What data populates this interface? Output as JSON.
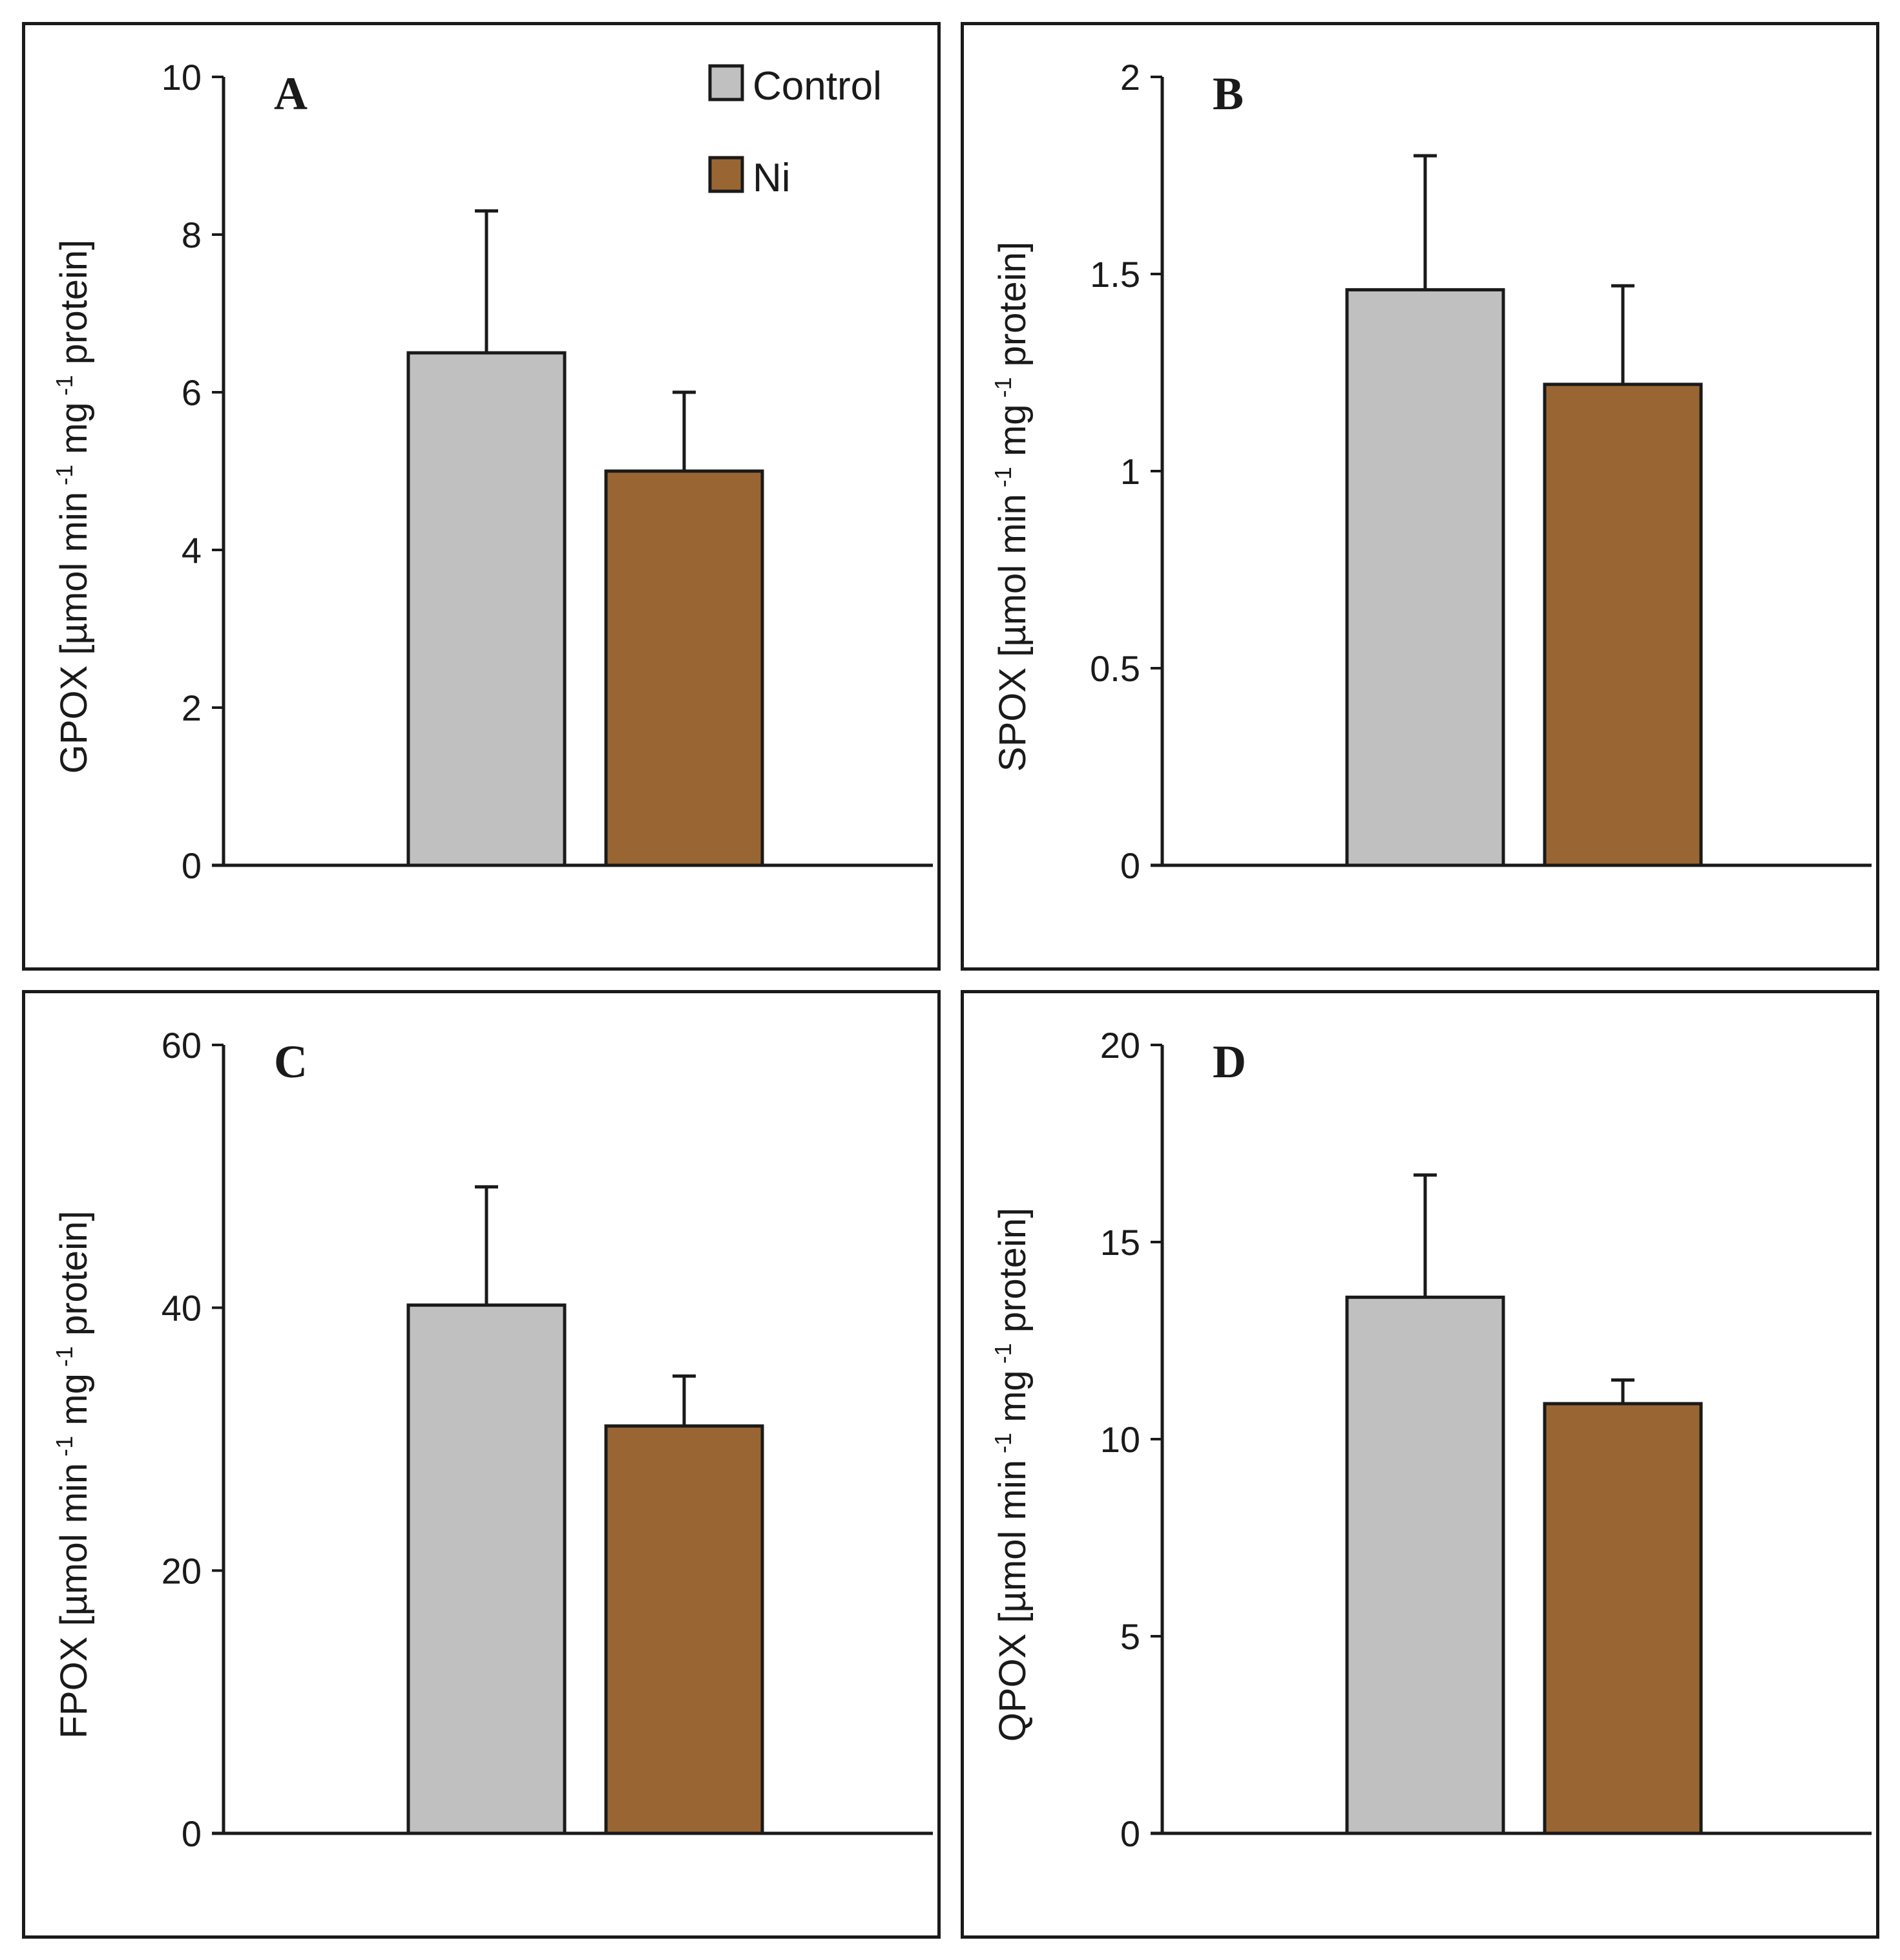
{
  "colors": {
    "control": "#c0c0c0",
    "ni": "#996633",
    "ink": "#1a1a1a"
  },
  "legend": [
    {
      "name": "Control",
      "color": "#c0c0c0"
    },
    {
      "name": "Ni",
      "color": "#996633"
    }
  ],
  "chart_data": [
    {
      "type": "bar",
      "panel": "A",
      "ylabel_prefix": "GPOX [µmol min",
      "ylabel_mid": " mg",
      "ylabel_suffix": " protein]",
      "ylabel_sup": "-1",
      "ylim": [
        0,
        10
      ],
      "yticks": [
        "0",
        "2",
        "4",
        "6",
        "8",
        "10"
      ],
      "series": [
        {
          "name": "Control",
          "value": 6.5,
          "error": 1.8
        },
        {
          "name": "Ni",
          "value": 5.0,
          "error": 1.0
        }
      ],
      "legend_position": "top-right"
    },
    {
      "type": "bar",
      "panel": "B",
      "ylabel_prefix": "SPOX [µmol min",
      "ylabel_mid": " mg",
      "ylabel_suffix": " protein]",
      "ylabel_sup": "-1",
      "ylim": [
        0,
        2
      ],
      "yticks": [
        "0",
        "0.5",
        "1",
        "1.5",
        "2"
      ],
      "series": [
        {
          "name": "Control",
          "value": 1.46,
          "error": 0.34
        },
        {
          "name": "Ni",
          "value": 1.22,
          "error": 0.25
        }
      ]
    },
    {
      "type": "bar",
      "panel": "C",
      "ylabel_prefix": "FPOX [µmol min",
      "ylabel_mid": " mg",
      "ylabel_suffix": " protein]",
      "ylabel_sup": "-1",
      "ylim": [
        0,
        60
      ],
      "yticks": [
        "0",
        "20",
        "40",
        "60"
      ],
      "series": [
        {
          "name": "Control",
          "value": 40.2,
          "error": 9.0
        },
        {
          "name": "Ni",
          "value": 31.0,
          "error": 3.8
        }
      ]
    },
    {
      "type": "bar",
      "panel": "D",
      "ylabel_prefix": "QPOX [µmol min",
      "ylabel_mid": " mg",
      "ylabel_suffix": " protein]",
      "ylabel_sup": "-1",
      "ylim": [
        0,
        20
      ],
      "yticks": [
        "0",
        "5",
        "10",
        "15",
        "20"
      ],
      "series": [
        {
          "name": "Control",
          "value": 13.6,
          "error": 3.1
        },
        {
          "name": "Ni",
          "value": 10.9,
          "error": 0.6
        }
      ]
    }
  ]
}
